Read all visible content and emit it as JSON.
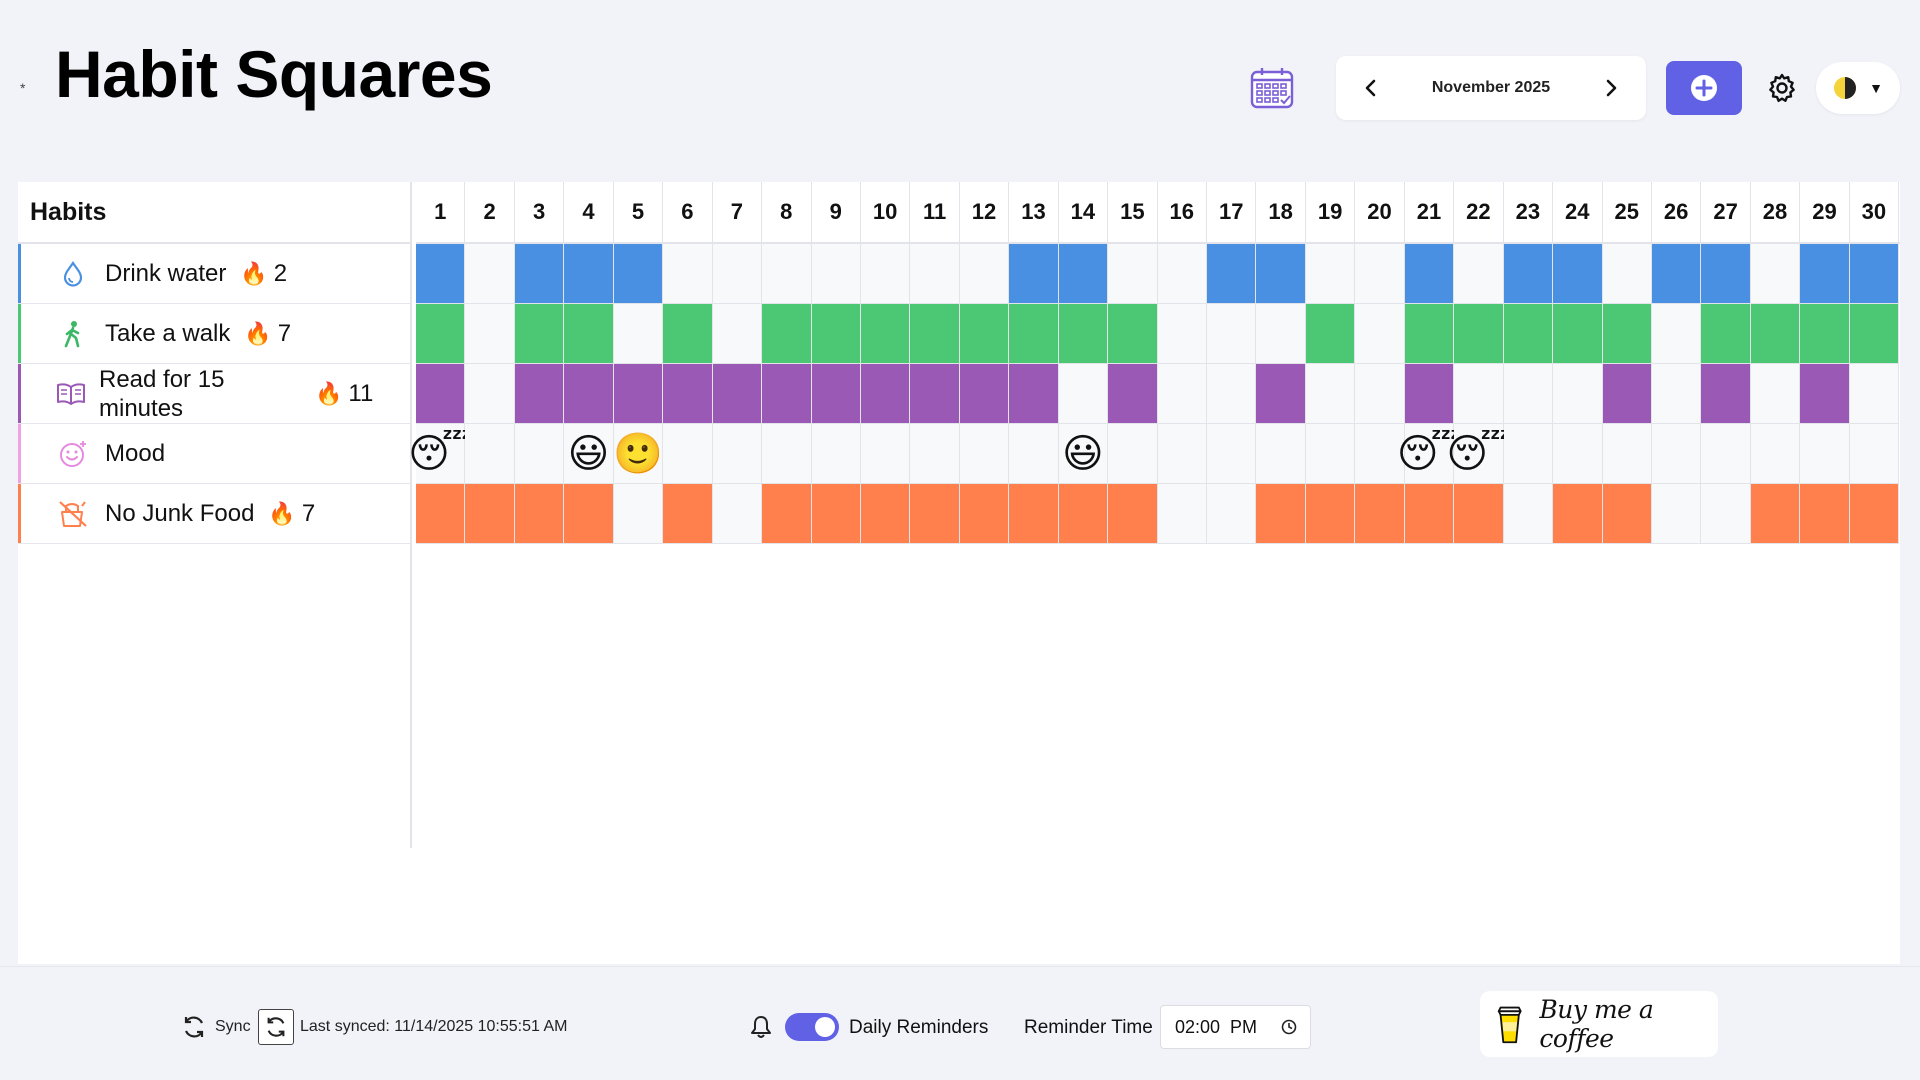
{
  "app": {
    "title": "Habit Squares",
    "dot": "*"
  },
  "header": {
    "month_label": "November 2025"
  },
  "habits_header": "Habits",
  "days": [
    "1",
    "2",
    "3",
    "4",
    "5",
    "6",
    "7",
    "8",
    "9",
    "10",
    "11",
    "12",
    "13",
    "14",
    "15",
    "16",
    "17",
    "18",
    "19",
    "20",
    "21",
    "22",
    "23",
    "24",
    "25",
    "26",
    "27",
    "28",
    "29",
    "30"
  ],
  "colors": {
    "accent": "#6161e6",
    "empty_cell": "#f8f9fb"
  },
  "habits": [
    {
      "name": "Drink water",
      "icon": "water-drop-icon",
      "streak": "2",
      "color": "#4a90e2",
      "done": [
        1,
        0,
        1,
        1,
        1,
        0,
        0,
        0,
        0,
        0,
        0,
        0,
        1,
        1,
        0,
        0,
        1,
        1,
        0,
        0,
        1,
        0,
        1,
        1,
        0,
        1,
        1,
        0,
        1,
        1
      ]
    },
    {
      "name": "Take a walk",
      "icon": "walking-person-icon",
      "streak": "7",
      "color": "#4cc774",
      "done": [
        1,
        0,
        1,
        1,
        0,
        1,
        0,
        1,
        1,
        1,
        1,
        1,
        1,
        1,
        1,
        0,
        0,
        0,
        1,
        0,
        1,
        1,
        1,
        1,
        1,
        0,
        1,
        1,
        1,
        1
      ]
    },
    {
      "name": "Read for 15 minutes",
      "icon": "open-book-icon",
      "streak": "11",
      "color": "#9b59b6",
      "done": [
        1,
        0,
        1,
        1,
        1,
        1,
        1,
        1,
        1,
        1,
        1,
        1,
        1,
        0,
        1,
        0,
        0,
        1,
        0,
        0,
        1,
        0,
        0,
        0,
        1,
        0,
        1,
        0,
        1,
        0
      ]
    },
    {
      "name": "Mood",
      "icon": "smiley-icon",
      "streak": "",
      "color": "#f0a3e0",
      "moods": {
        "1": "😴",
        "4": "😃",
        "5": "🙂",
        "14": "😃",
        "21": "😴",
        "22": "😴"
      }
    },
    {
      "name": "No Junk Food",
      "icon": "no-food-icon",
      "streak": "7",
      "color": "#ff7f4d",
      "done": [
        1,
        1,
        1,
        1,
        0,
        1,
        0,
        1,
        1,
        1,
        1,
        1,
        1,
        1,
        1,
        0,
        0,
        1,
        1,
        1,
        1,
        1,
        0,
        1,
        1,
        0,
        0,
        1,
        1,
        1
      ]
    }
  ],
  "footer": {
    "sync_label": "Sync",
    "last_synced": "Last synced: 11/14/2025 10:55:51 AM",
    "reminders_label": "Daily Reminders",
    "reminder_time_label": "Reminder Time",
    "reminder_time_value": "02:00  PM",
    "coffee_label": "Buy me a coffee"
  }
}
